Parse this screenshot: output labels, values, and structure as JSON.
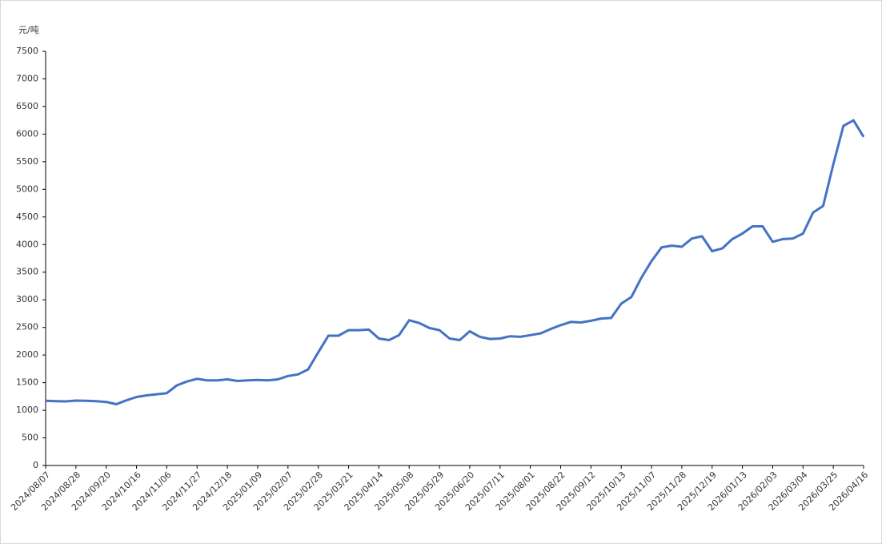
{
  "chart_data": {
    "type": "line",
    "y_label": "元/吨",
    "color": "#4472c4",
    "categories": [
      "2024/08/07",
      null,
      null,
      "2024/08/28",
      null,
      null,
      "2024/09/20",
      null,
      null,
      "2024/10/16",
      null,
      null,
      "2024/11/06",
      null,
      null,
      "2024/11/27",
      null,
      null,
      "2024/12/18",
      null,
      null,
      "2025/01/09",
      null,
      null,
      "2025/02/07",
      null,
      null,
      "2025/02/28",
      null,
      null,
      "2025/03/21",
      null,
      null,
      "2025/04/14",
      null,
      null,
      "2025/05/08",
      null,
      null,
      "2025/05/29",
      null,
      null,
      "2025/06/20",
      null,
      null,
      "2025/07/11",
      null,
      null,
      "2025/08/01",
      null,
      null,
      "2025/08/22",
      null,
      null,
      "2025/09/12",
      null,
      null,
      "2025/10/13",
      null,
      null,
      "2025/11/07",
      null,
      null,
      "2025/11/28",
      null,
      null,
      "2025/12/19",
      null,
      null,
      "2026/01/13",
      null,
      null,
      "2026/02/03",
      null,
      null,
      "2026/03/04",
      null,
      null,
      "2026/03/25",
      null,
      null,
      "2026/04/16"
    ],
    "values": [
      1170,
      1165,
      1160,
      1175,
      1170,
      1165,
      1150,
      1110,
      1180,
      1240,
      1270,
      1290,
      1310,
      1450,
      1520,
      1570,
      1540,
      1540,
      1560,
      1530,
      1540,
      1550,
      1540,
      1560,
      1620,
      1650,
      1740,
      2050,
      2350,
      2350,
      2450,
      2450,
      2460,
      2300,
      2270,
      2360,
      2630,
      2580,
      2490,
      2450,
      2300,
      2270,
      2430,
      2330,
      2290,
      2300,
      2340,
      2330,
      2360,
      2390,
      2470,
      2540,
      2600,
      2590,
      2620,
      2660,
      2670,
      2930,
      3050,
      3400,
      3700,
      3950,
      3980,
      3960,
      4110,
      4150,
      3880,
      3930,
      4100,
      4200,
      4330,
      4330,
      4050,
      4100,
      4110,
      4200,
      4580,
      4700,
      5450,
      6150,
      6250,
      5950
    ],
    "ylim": [
      0,
      7500
    ],
    "yticks": [
      0,
      500,
      1000,
      1500,
      2000,
      2500,
      3000,
      3500,
      4000,
      4500,
      5000,
      5500,
      6000,
      6500,
      7000,
      7500
    ],
    "grid": false
  }
}
